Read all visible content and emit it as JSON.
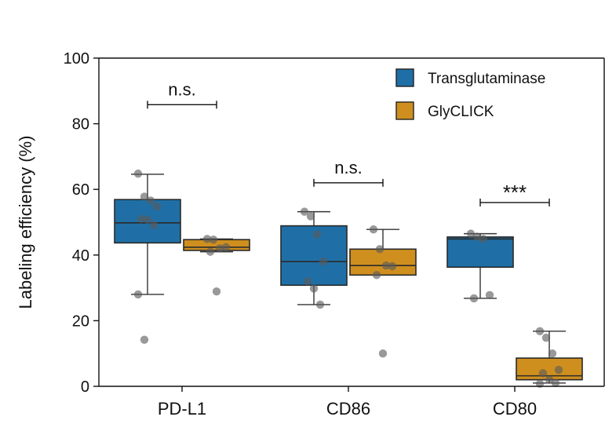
{
  "chart_data": {
    "type": "box",
    "ylabel": "Labeling efficiency (%)",
    "xlabel": "",
    "ylim": [
      0,
      100
    ],
    "yticks": [
      0,
      20,
      40,
      60,
      80,
      100
    ],
    "grid": false,
    "legend_position": "top-right",
    "categories": [
      "PD-L1",
      "CD86",
      "CD80"
    ],
    "series": [
      {
        "name": "Transglutaminase",
        "color": "#1f6fa6",
        "boxes": [
          {
            "category": "PD-L1",
            "whisker_low": 28,
            "q1": 43.7,
            "median": 49.8,
            "q3": 56.9,
            "whisker_high": 64.6,
            "points": [
              64.8,
              57.8,
              56.6,
              54.8,
              51.0,
              50.8,
              49.1,
              28.0,
              14.2
            ]
          },
          {
            "category": "CD86",
            "whisker_low": 24.9,
            "q1": 30.8,
            "median": 38.0,
            "q3": 48.9,
            "whisker_high": 53.2,
            "points": [
              53.2,
              51.8,
              46.3,
              38.0,
              32.0,
              29.8,
              24.9
            ]
          },
          {
            "category": "CD80",
            "whisker_low": 26.8,
            "q1": 36.3,
            "median": 44.9,
            "q3": 45.5,
            "whisker_high": 46.5,
            "points": [
              46.5,
              45.6,
              44.9,
              27.8,
              26.8
            ]
          }
        ]
      },
      {
        "name": "GlyCLICK",
        "color": "#cf8f1e",
        "boxes": [
          {
            "category": "PD-L1",
            "whisker_low": 41.0,
            "q1": 41.4,
            "median": 42.4,
            "q3": 44.7,
            "whisker_high": 44.9,
            "points": [
              44.9,
              44.7,
              42.0,
              42.4,
              41.0,
              28.9
            ]
          },
          {
            "category": "CD86",
            "whisker_low": 33.9,
            "q1": 33.9,
            "median": 36.8,
            "q3": 41.8,
            "whisker_high": 47.8,
            "points": [
              47.8,
              41.8,
              36.8,
              36.6,
              33.9,
              10.0
            ]
          },
          {
            "category": "CD80",
            "whisker_low": 1.0,
            "q1": 2.0,
            "median": 3.2,
            "q3": 8.6,
            "whisker_high": 16.8,
            "points": [
              16.8,
              14.8,
              10.0,
              5.0,
              4.0,
              2.0,
              1.0,
              0.8
            ]
          }
        ]
      }
    ],
    "annotations": [
      {
        "category": "PD-L1",
        "text": "n.s.",
        "y": 85.8
      },
      {
        "category": "CD86",
        "text": "n.s.",
        "y": 62.0
      },
      {
        "category": "CD80",
        "text": "***",
        "y": 56.0
      }
    ]
  }
}
